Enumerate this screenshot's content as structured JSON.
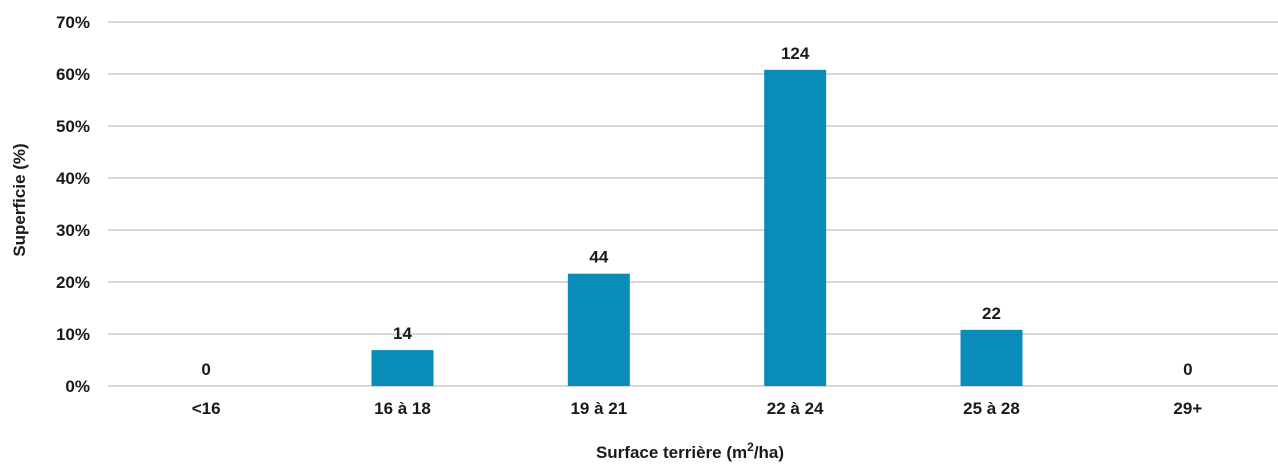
{
  "chart_data": {
    "type": "bar",
    "title": "",
    "xlabel": "Surface terrière (m",
    "xlabel_sup": "2",
    "xlabel_tail": "/ha)",
    "ylabel": "Superficie (%)",
    "categories": [
      "<16",
      "16 à 18",
      "19 à 21",
      "22 à 24",
      "25 à 28",
      "29+"
    ],
    "values": [
      0,
      6.9,
      21.6,
      60.8,
      10.8,
      0
    ],
    "data_labels": [
      "0",
      "14",
      "44",
      "124",
      "22",
      "0"
    ],
    "ylim": [
      0,
      70
    ],
    "yticks": [
      0,
      10,
      20,
      30,
      40,
      50,
      60,
      70
    ],
    "ytick_labels": [
      "0%",
      "10%",
      "20%",
      "30%",
      "40%",
      "50%",
      "60%",
      "70%"
    ],
    "grid": true,
    "legend": "none",
    "bar_color": "#0a8cb8",
    "grid_color": "#c0c0c0"
  }
}
